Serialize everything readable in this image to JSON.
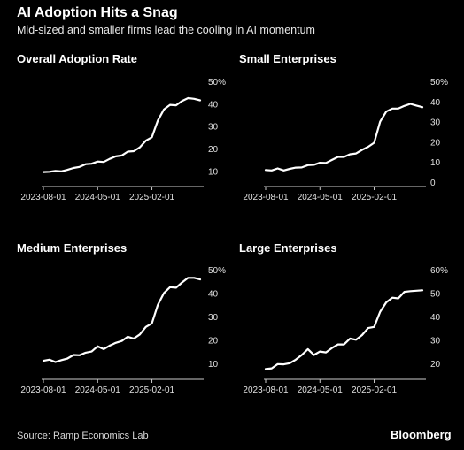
{
  "header": {
    "title": "AI Adoption Hits a Snag",
    "subtitle": "Mid-sized and smaller firms lead the cooling in AI momentum"
  },
  "footer": {
    "source": "Source: Ramp Economics Lab",
    "brand": "Bloomberg"
  },
  "colors": {
    "background": "#000000",
    "line": "#ffffff",
    "axis": "#cccccc",
    "text": "#e0e0e0"
  },
  "chart_data": [
    {
      "type": "line",
      "title": "Overall Adoption Rate",
      "unit_suffix": "%",
      "xlabels": [
        "2023-08-01",
        "2024-05-01",
        "2025-02-01"
      ],
      "ylim": [
        5,
        50
      ],
      "yticks": [
        10,
        20,
        30,
        40,
        50
      ],
      "x": [
        "2023-08",
        "2023-09",
        "2023-10",
        "2023-11",
        "2023-12",
        "2024-01",
        "2024-02",
        "2024-03",
        "2024-04",
        "2024-05",
        "2024-06",
        "2024-07",
        "2024-08",
        "2024-09",
        "2024-10",
        "2024-11",
        "2024-12",
        "2025-01",
        "2025-02",
        "2025-03",
        "2025-04",
        "2025-05",
        "2025-06",
        "2025-07",
        "2025-08",
        "2025-09",
        "2025-10"
      ],
      "series": [
        {
          "values": [
            9.5,
            9.6,
            10.0,
            9.8,
            10.5,
            11.3,
            11.8,
            13.0,
            13.2,
            14.2,
            14.0,
            15.4,
            16.5,
            16.9,
            18.6,
            18.8,
            20.5,
            23.5,
            25.0,
            32.5,
            37.5,
            39.5,
            39.3,
            41.2,
            42.5,
            42.2,
            41.5
          ]
        }
      ]
    },
    {
      "type": "line",
      "title": "Small Enterprises",
      "unit_suffix": "%",
      "xlabels": [
        "2023-08-01",
        "2024-05-01",
        "2025-02-01"
      ],
      "ylim": [
        0,
        50
      ],
      "yticks": [
        0,
        10,
        20,
        30,
        40,
        50
      ],
      "x": [
        "2023-08",
        "2023-09",
        "2023-10",
        "2023-11",
        "2023-12",
        "2024-01",
        "2024-02",
        "2024-03",
        "2024-04",
        "2024-05",
        "2024-06",
        "2024-07",
        "2024-08",
        "2024-09",
        "2024-10",
        "2024-11",
        "2024-12",
        "2025-01",
        "2025-02",
        "2025-03",
        "2025-04",
        "2025-05",
        "2025-06",
        "2025-07",
        "2025-08",
        "2025-09",
        "2025-10"
      ],
      "series": [
        {
          "values": [
            6.0,
            5.8,
            6.8,
            5.8,
            6.6,
            7.2,
            7.3,
            8.4,
            8.6,
            9.6,
            9.5,
            11.0,
            12.5,
            12.5,
            13.8,
            14.2,
            16.0,
            17.5,
            19.5,
            30.0,
            35.0,
            36.5,
            36.5,
            37.8,
            38.8,
            38.0,
            37.2
          ]
        }
      ]
    },
    {
      "type": "line",
      "title": "Medium Enterprises",
      "unit_suffix": "%",
      "xlabels": [
        "2023-08-01",
        "2024-05-01",
        "2025-02-01"
      ],
      "ylim": [
        5,
        50
      ],
      "yticks": [
        10,
        20,
        30,
        40,
        50
      ],
      "x": [
        "2023-08",
        "2023-09",
        "2023-10",
        "2023-11",
        "2023-12",
        "2024-01",
        "2024-02",
        "2024-03",
        "2024-04",
        "2024-05",
        "2024-06",
        "2024-07",
        "2024-08",
        "2024-09",
        "2024-10",
        "2024-11",
        "2024-12",
        "2025-01",
        "2025-02",
        "2025-03",
        "2025-04",
        "2025-05",
        "2025-06",
        "2025-07",
        "2025-08",
        "2025-09",
        "2025-10"
      ],
      "series": [
        {
          "values": [
            11.0,
            11.5,
            10.5,
            11.3,
            12.0,
            13.5,
            13.4,
            14.5,
            15.0,
            17.2,
            16.0,
            17.5,
            18.7,
            19.5,
            21.3,
            20.5,
            22.3,
            25.5,
            27.0,
            35.0,
            40.0,
            42.5,
            42.3,
            44.5,
            46.5,
            46.5,
            45.8
          ]
        }
      ]
    },
    {
      "type": "line",
      "title": "Large Enterprises",
      "unit_suffix": "%",
      "xlabels": [
        "2023-08-01",
        "2024-05-01",
        "2025-02-01"
      ],
      "ylim": [
        15,
        60
      ],
      "yticks": [
        20,
        30,
        40,
        50,
        60
      ],
      "x": [
        "2023-08",
        "2023-09",
        "2023-10",
        "2023-11",
        "2023-12",
        "2024-01",
        "2024-02",
        "2024-03",
        "2024-04",
        "2024-05",
        "2024-06",
        "2024-07",
        "2024-08",
        "2024-09",
        "2024-10",
        "2024-11",
        "2024-12",
        "2025-01",
        "2025-02",
        "2025-03",
        "2025-04",
        "2025-05",
        "2025-06",
        "2025-07",
        "2025-08",
        "2025-09",
        "2025-10"
      ],
      "series": [
        {
          "values": [
            17.5,
            17.8,
            19.6,
            19.5,
            20.0,
            21.5,
            23.5,
            26.0,
            23.5,
            25.0,
            24.6,
            26.5,
            28.0,
            28.0,
            30.5,
            30.0,
            32.0,
            35.0,
            35.5,
            42.0,
            46.0,
            48.0,
            47.7,
            50.5,
            50.8,
            51.0,
            51.2
          ]
        }
      ]
    }
  ]
}
